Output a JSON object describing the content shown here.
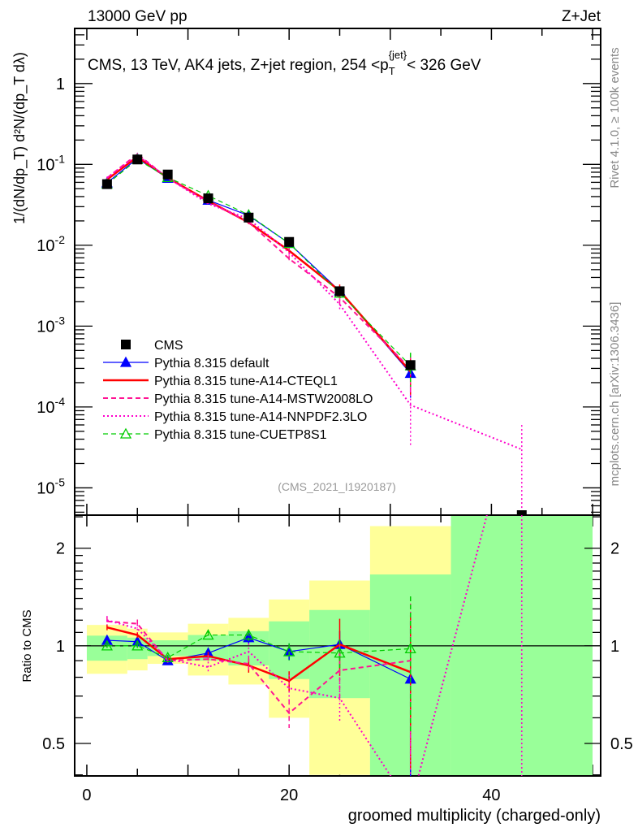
{
  "header": {
    "left": "13000 GeV pp",
    "right": "Z+Jet"
  },
  "side_labels": {
    "rivet": "Rivet 4.1.0, ≥ 100k events",
    "mcplots": "mcplots.cern.ch [arXiv:1306.3436]"
  },
  "chart_data": [
    {
      "type": "line",
      "panel": "main",
      "title_parts": {
        "pre": "CMS, 13 TeV, AK4 jets, Z+jet region, 254 <p",
        "sub": "T",
        "sup": "{jet}",
        "post": "< 326 GeV"
      },
      "analysis_id": "(CMS_2021_I1920187)",
      "ylabel": "1/(dN/dp_T) d²N/(dp_T dλ)",
      "yscale": "log",
      "ylim": [
        4.6e-06,
        4.8
      ],
      "xlim": [
        -1.2,
        50.8
      ],
      "ytick_labels": [
        {
          "value": 1,
          "base": "1",
          "exp": ""
        },
        {
          "value": 0.1,
          "base": "10",
          "exp": "-1"
        },
        {
          "value": 0.01,
          "base": "10",
          "exp": "-2"
        },
        {
          "value": 0.001,
          "base": "10",
          "exp": "-3"
        },
        {
          "value": 0.0001,
          "base": "10",
          "exp": "-4"
        },
        {
          "value": 1e-05,
          "base": "10",
          "exp": "-5"
        }
      ],
      "x": [
        2,
        5,
        8,
        12,
        16,
        20,
        25,
        32,
        43
      ],
      "bin_edges": [
        0,
        4,
        6,
        10,
        14,
        18,
        22,
        28,
        36,
        50
      ],
      "data": {
        "name": "CMS",
        "color": "#000000",
        "values": [
          0.057,
          0.115,
          0.075,
          0.038,
          0.022,
          0.011,
          0.0027,
          0.00033,
          4.6e-06
        ]
      },
      "legend_position": "bottom-left",
      "series": [
        {
          "name": "Pythia 8.315 default",
          "color": "#0000ff",
          "style": "solid",
          "width": 1.2,
          "marker": "triangle-filled",
          "ratio": [
            1.04,
            1.03,
            0.9,
            0.95,
            1.06,
            0.96,
            1.01,
            0.79,
            null
          ],
          "rel_err": [
            0.02,
            0.02,
            0.02,
            0.03,
            0.04,
            0.06,
            0.1,
            0.5,
            null
          ]
        },
        {
          "name": "Pythia 8.315 tune-A14-CTEQL1",
          "color": "#ff0000",
          "style": "solid",
          "width": 2.5,
          "marker": "none",
          "ratio": [
            1.14,
            1.08,
            0.91,
            0.93,
            0.87,
            0.78,
            1.01,
            0.83,
            null
          ],
          "rel_err": [
            0.02,
            0.02,
            0.02,
            0.03,
            0.05,
            0.07,
            0.2,
            0.5,
            null
          ]
        },
        {
          "name": "Pythia 8.315 tune-A14-MSTW2008LO",
          "color": "#ff1493",
          "style": "dashed",
          "width": 2,
          "marker": "none",
          "ratio": [
            1.19,
            1.17,
            0.9,
            0.91,
            0.88,
            0.62,
            0.84,
            0.9,
            null
          ],
          "rel_err": [
            0.03,
            0.03,
            0.02,
            0.03,
            0.05,
            0.1,
            0.2,
            0.5,
            null
          ]
        },
        {
          "name": "Pythia 8.315 tune-A14-NNPDF2.3LO",
          "color": "#ff00cc",
          "style": "dotted",
          "width": 2,
          "marker": "none",
          "ratio": [
            1.2,
            1.13,
            0.91,
            0.86,
            0.96,
            0.74,
            0.69,
            0.32,
            6.5
          ],
          "rel_err": [
            0.03,
            0.03,
            0.02,
            0.04,
            0.06,
            0.1,
            0.15,
            0.7,
            1.0
          ]
        },
        {
          "name": "Pythia 8.315 tune-CUETP8S1",
          "color": "#00cc00",
          "style": "dashed",
          "width": 1.2,
          "marker": "triangle-open",
          "ratio": [
            1.0,
            1.0,
            0.92,
            1.08,
            1.08,
            0.96,
            0.95,
            0.98,
            null
          ],
          "rel_err": [
            0.02,
            0.02,
            0.02,
            0.03,
            0.04,
            0.06,
            0.1,
            0.45,
            null
          ]
        }
      ]
    },
    {
      "type": "line",
      "panel": "ratio",
      "ylabel": "Ratio to CMS",
      "xlabel": "groomed multiplicity (charged-only)",
      "yscale": "log",
      "ylim": [
        0.397,
        2.53
      ],
      "ytick_labels": [
        {
          "value": 2,
          "label": "2"
        },
        {
          "value": 1,
          "label": "1"
        },
        {
          "value": 0.5,
          "label": "0.5"
        }
      ],
      "xtick_labels": [
        {
          "value": 0,
          "label": "0"
        },
        {
          "value": 20,
          "label": "20"
        },
        {
          "value": 40,
          "label": "40"
        }
      ],
      "bands": {
        "total_color": "#ffff99",
        "stat_color": "#99ff99",
        "total": [
          [
            0.82,
            1.16
          ],
          [
            0.84,
            1.13
          ],
          [
            0.88,
            1.1
          ],
          [
            0.81,
            1.17
          ],
          [
            0.76,
            1.22
          ],
          [
            0.6,
            1.39
          ],
          [
            0.4,
            1.59
          ],
          [
            0.3,
            2.34
          ],
          [
            0.3,
            3.0
          ]
        ],
        "stat": [
          [
            0.9,
            1.075
          ],
          [
            0.91,
            1.06
          ],
          [
            0.93,
            1.04
          ],
          [
            0.9,
            1.08
          ],
          [
            0.87,
            1.11
          ],
          [
            0.79,
            1.19
          ],
          [
            0.69,
            1.29
          ],
          [
            0.3,
            1.66
          ],
          [
            0.3,
            3.0
          ]
        ]
      }
    }
  ]
}
